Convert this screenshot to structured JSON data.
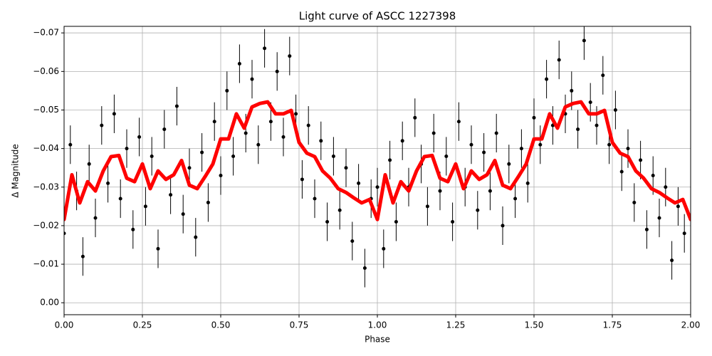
{
  "chart_data": {
    "type": "scatter",
    "title": "Light curve of ASCC 1227398",
    "x_label": "Phase",
    "y_label": "Δ Magnitude",
    "xlim": [
      0,
      2
    ],
    "ylim": [
      0.0031,
      -0.0717
    ],
    "grid": true,
    "xticks": [
      {
        "value": 0,
        "label": "0.00"
      },
      {
        "value": 0.25,
        "label": "0.25"
      },
      {
        "value": 0.5,
        "label": "0.50"
      },
      {
        "value": 0.75,
        "label": "0.75"
      },
      {
        "value": 1,
        "label": "1.00"
      },
      {
        "value": 1.25,
        "label": "1.25"
      },
      {
        "value": 1.5,
        "label": "1.50"
      },
      {
        "value": 1.75,
        "label": "1.75"
      },
      {
        "value": 2,
        "label": "2.00"
      }
    ],
    "yticks": [
      {
        "value": 0,
        "label": "0.00"
      },
      {
        "value": -0.01,
        "label": "−0.01"
      },
      {
        "value": -0.02,
        "label": "−0.02"
      },
      {
        "value": -0.03,
        "label": "−0.03"
      },
      {
        "value": -0.04,
        "label": "−0.04"
      },
      {
        "value": -0.05,
        "label": "−0.05"
      },
      {
        "value": -0.06,
        "label": "−0.06"
      },
      {
        "value": -0.07,
        "label": "−0.07"
      }
    ],
    "series": [
      {
        "type": "errorbar",
        "color": "#000000",
        "yerr": 0.005,
        "x": [
          0,
          0.02,
          0.04,
          0.06,
          0.08,
          0.1,
          0.12,
          0.14,
          0.16,
          0.18,
          0.2,
          0.22,
          0.24,
          0.26,
          0.28,
          0.3,
          0.32,
          0.34,
          0.36,
          0.38,
          0.4,
          0.42,
          0.44,
          0.46,
          0.48,
          0.5,
          0.52,
          0.54,
          0.56,
          0.58,
          0.6,
          0.62,
          0.64,
          0.66,
          0.68,
          0.7,
          0.72,
          0.74,
          0.76,
          0.78,
          0.8,
          0.82,
          0.84,
          0.86,
          0.88,
          0.9,
          0.92,
          0.94,
          0.96,
          0.98,
          1,
          1.02,
          1.04,
          1.06,
          1.08,
          1.1,
          1.12,
          1.14,
          1.16,
          1.18,
          1.2,
          1.22,
          1.24,
          1.26,
          1.28,
          1.3,
          1.32,
          1.34,
          1.36,
          1.38,
          1.4,
          1.42,
          1.44,
          1.46,
          1.48,
          1.5,
          1.52,
          1.54,
          1.56,
          1.58,
          1.6,
          1.62,
          1.64,
          1.66,
          1.68,
          1.7,
          1.72,
          1.74,
          1.76,
          1.78,
          1.8,
          1.82,
          1.84,
          1.86,
          1.88,
          1.9,
          1.92,
          1.94,
          1.96,
          1.98
        ],
        "values": [
          -0.018,
          -0.041,
          -0.029,
          -0.012,
          -0.036,
          -0.022,
          -0.046,
          -0.031,
          -0.049,
          -0.027,
          -0.04,
          -0.019,
          -0.043,
          -0.025,
          -0.038,
          -0.014,
          -0.045,
          -0.028,
          -0.051,
          -0.023,
          -0.035,
          -0.017,
          -0.039,
          -0.026,
          -0.047,
          -0.033,
          -0.055,
          -0.038,
          -0.062,
          -0.044,
          -0.058,
          -0.041,
          -0.066,
          -0.047,
          -0.06,
          -0.043,
          -0.064,
          -0.049,
          -0.032,
          -0.046,
          -0.027,
          -0.042,
          -0.021,
          -0.038,
          -0.024,
          -0.035,
          -0.016,
          -0.031,
          -0.009,
          -0.027,
          -0.03,
          -0.014,
          -0.037,
          -0.021,
          -0.042,
          -0.03,
          -0.048,
          -0.036,
          -0.025,
          -0.044,
          -0.029,
          -0.038,
          -0.021,
          -0.047,
          -0.03,
          -0.041,
          -0.024,
          -0.039,
          -0.029,
          -0.044,
          -0.02,
          -0.036,
          -0.027,
          -0.04,
          -0.031,
          -0.048,
          -0.041,
          -0.058,
          -0.046,
          -0.063,
          -0.049,
          -0.055,
          -0.045,
          -0.068,
          -0.052,
          -0.046,
          -0.059,
          -0.041,
          -0.05,
          -0.034,
          -0.04,
          -0.026,
          -0.037,
          -0.019,
          -0.033,
          -0.022,
          -0.03,
          -0.011,
          -0.025,
          -0.018
        ]
      },
      {
        "type": "line",
        "color": "#ff0000",
        "x": [
          0,
          0.025,
          0.05,
          0.075,
          0.1,
          0.125,
          0.15,
          0.175,
          0.2,
          0.225,
          0.25,
          0.275,
          0.3,
          0.325,
          0.35,
          0.375,
          0.4,
          0.425,
          0.45,
          0.475,
          0.5,
          0.525,
          0.55,
          0.575,
          0.6,
          0.625,
          0.65,
          0.675,
          0.7,
          0.725,
          0.75,
          0.775,
          0.8,
          0.825,
          0.85,
          0.875,
          0.9,
          0.925,
          0.95,
          0.975,
          1,
          1.025,
          1.05,
          1.075,
          1.1,
          1.125,
          1.15,
          1.175,
          1.2,
          1.225,
          1.25,
          1.275,
          1.3,
          1.325,
          1.35,
          1.375,
          1.4,
          1.425,
          1.45,
          1.475,
          1.5,
          1.525,
          1.55,
          1.575,
          1.6,
          1.625,
          1.65,
          1.675,
          1.7,
          1.725,
          1.75,
          1.775,
          1.8,
          1.825,
          1.85,
          1.875,
          1.9,
          1.925,
          1.95,
          1.975,
          2
        ],
        "values": [
          -0.0216,
          -0.0332,
          -0.0259,
          -0.0314,
          -0.029,
          -0.0342,
          -0.0379,
          -0.0382,
          -0.0323,
          -0.0314,
          -0.036,
          -0.0296,
          -0.0342,
          -0.032,
          -0.0332,
          -0.0369,
          -0.0305,
          -0.0296,
          -0.0327,
          -0.036,
          -0.0425,
          -0.0425,
          -0.049,
          -0.0453,
          -0.0508,
          -0.0517,
          -0.0521,
          -0.049,
          -0.049,
          -0.0499,
          -0.0416,
          -0.0388,
          -0.0379,
          -0.0342,
          -0.0323,
          -0.0296,
          -0.0286,
          -0.0272,
          -0.0259,
          -0.0268,
          -0.0216,
          -0.0332,
          -0.0259,
          -0.0314,
          -0.029,
          -0.0342,
          -0.0379,
          -0.0382,
          -0.0323,
          -0.0314,
          -0.036,
          -0.0296,
          -0.0342,
          -0.032,
          -0.0332,
          -0.0369,
          -0.0305,
          -0.0296,
          -0.0327,
          -0.036,
          -0.0425,
          -0.0425,
          -0.049,
          -0.0453,
          -0.0508,
          -0.0517,
          -0.0521,
          -0.049,
          -0.049,
          -0.0499,
          -0.0416,
          -0.0388,
          -0.0379,
          -0.0342,
          -0.0323,
          -0.0296,
          -0.0286,
          -0.0272,
          -0.0259,
          -0.0268,
          -0.0216
        ]
      }
    ]
  }
}
